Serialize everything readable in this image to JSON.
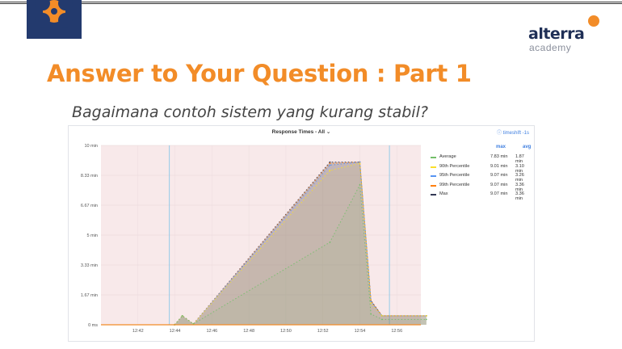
{
  "brand": {
    "name": "alterra",
    "sub": "academy",
    "accent": "#f28c28",
    "dark": "#1f2f56"
  },
  "slide": {
    "title": "Answer to Your Question : Part 1",
    "subtitle": "Bagaimana contoh sistem yang kurang stabil?"
  },
  "panel": {
    "title": "Response Times - All ⌄",
    "timeshift": "ⓘ timeshift -1s"
  },
  "chart_data": {
    "type": "line",
    "title": "Response Times - All",
    "xlabel": "",
    "ylabel": "",
    "x_ticks": [
      "12:42",
      "12:44",
      "12:46",
      "12:48",
      "12:50",
      "12:52",
      "12:54",
      "12:56"
    ],
    "y_ticks": [
      "0 ms",
      "1.67 min",
      "3.33 min",
      "5 min",
      "6.67 min",
      "8.33 min",
      "10 min"
    ],
    "ylim": [
      0,
      10
    ],
    "y_unit": "min",
    "grid": true,
    "legend_position": "right",
    "legend_columns": [
      "max",
      "avg"
    ],
    "series": [
      {
        "name": "Average",
        "color": "#73bf69",
        "max": "7.83 min",
        "avg": "1.87 min",
        "points": [
          [
            12.733,
            0
          ],
          [
            12.74,
            0.5
          ],
          [
            12.75,
            0.05
          ],
          [
            12.873,
            4.6
          ],
          [
            12.9,
            7.8
          ],
          [
            12.91,
            0.6
          ],
          [
            12.92,
            0.3
          ],
          [
            12.96,
            0.3
          ]
        ]
      },
      {
        "name": "90th Percentile",
        "color": "#fade2a",
        "max": "9.01 min",
        "avg": "3.10 min",
        "points": [
          [
            12.733,
            0
          ],
          [
            12.74,
            0.5
          ],
          [
            12.75,
            0.05
          ],
          [
            12.873,
            8.6
          ],
          [
            12.9,
            9.0
          ],
          [
            12.91,
            1.2
          ],
          [
            12.92,
            0.5
          ],
          [
            12.96,
            0.5
          ]
        ]
      },
      {
        "name": "95th Percentile",
        "color": "#5794f2",
        "max": "9.07 min",
        "avg": "3.26 min",
        "points": [
          [
            12.733,
            0
          ],
          [
            12.74,
            0.5
          ],
          [
            12.75,
            0.05
          ],
          [
            12.873,
            8.9
          ],
          [
            12.9,
            9.07
          ],
          [
            12.91,
            1.3
          ],
          [
            12.92,
            0.5
          ],
          [
            12.96,
            0.5
          ]
        ]
      },
      {
        "name": "99th Percentile",
        "color": "#ff7f0e",
        "max": "9.07 min",
        "avg": "3.36 min",
        "points": [
          [
            12.733,
            0
          ],
          [
            12.74,
            0.5
          ],
          [
            12.75,
            0.05
          ],
          [
            12.873,
            9.0
          ],
          [
            12.9,
            9.07
          ],
          [
            12.91,
            1.35
          ],
          [
            12.92,
            0.5
          ],
          [
            12.96,
            0.5
          ]
        ]
      },
      {
        "name": "Max",
        "color": "#343a56",
        "max": "9.07 min",
        "avg": "3.36 min",
        "points": [
          [
            12.733,
            0
          ],
          [
            12.74,
            0.5
          ],
          [
            12.75,
            0.05
          ],
          [
            12.873,
            9.07
          ],
          [
            12.9,
            9.07
          ],
          [
            12.91,
            1.35
          ],
          [
            12.92,
            0.5
          ],
          [
            12.96,
            0.5
          ]
        ]
      }
    ]
  }
}
